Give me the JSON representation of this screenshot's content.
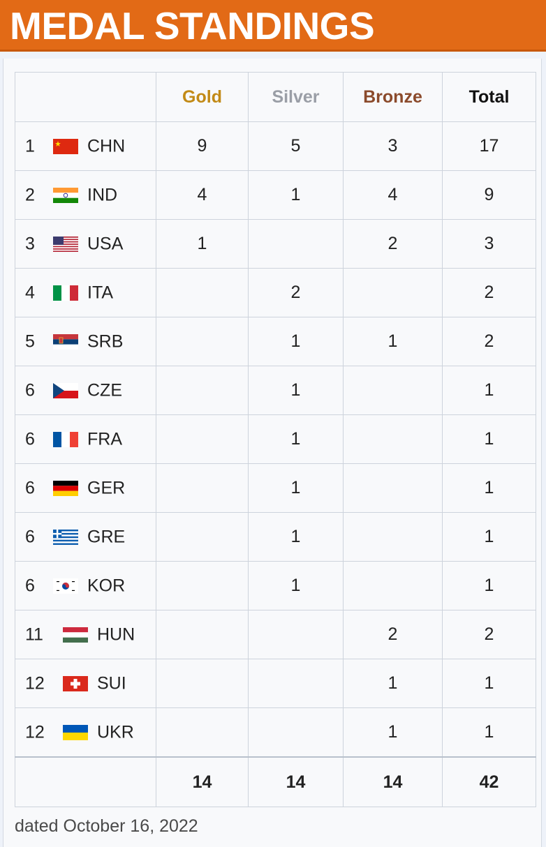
{
  "banner": {
    "title": "MEDAL STANDINGS",
    "background": "#e26a16"
  },
  "table": {
    "headers": {
      "gold": "Gold",
      "silver": "Silver",
      "bronze": "Bronze",
      "total": "Total"
    },
    "header_colors": {
      "gold": "#c28a16",
      "silver": "#9a9ea6",
      "bronze": "#8b4a2b",
      "total": "#111111"
    },
    "rows": [
      {
        "rank": "1",
        "code": "CHN",
        "flag": "china-flag-icon",
        "gold": "9",
        "silver": "5",
        "bronze": "3",
        "total": "17"
      },
      {
        "rank": "2",
        "code": "IND",
        "flag": "india-flag-icon",
        "gold": "4",
        "silver": "1",
        "bronze": "4",
        "total": "9"
      },
      {
        "rank": "3",
        "code": "USA",
        "flag": "usa-flag-icon",
        "gold": "1",
        "silver": "",
        "bronze": "2",
        "total": "3"
      },
      {
        "rank": "4",
        "code": "ITA",
        "flag": "italy-flag-icon",
        "gold": "",
        "silver": "2",
        "bronze": "",
        "total": "2"
      },
      {
        "rank": "5",
        "code": "SRB",
        "flag": "serbia-flag-icon",
        "gold": "",
        "silver": "1",
        "bronze": "1",
        "total": "2"
      },
      {
        "rank": "6",
        "code": "CZE",
        "flag": "czechia-flag-icon",
        "gold": "",
        "silver": "1",
        "bronze": "",
        "total": "1"
      },
      {
        "rank": "6",
        "code": "FRA",
        "flag": "france-flag-icon",
        "gold": "",
        "silver": "1",
        "bronze": "",
        "total": "1"
      },
      {
        "rank": "6",
        "code": "GER",
        "flag": "germany-flag-icon",
        "gold": "",
        "silver": "1",
        "bronze": "",
        "total": "1"
      },
      {
        "rank": "6",
        "code": "GRE",
        "flag": "greece-flag-icon",
        "gold": "",
        "silver": "1",
        "bronze": "",
        "total": "1"
      },
      {
        "rank": "6",
        "code": "KOR",
        "flag": "korea-flag-icon",
        "gold": "",
        "silver": "1",
        "bronze": "",
        "total": "1"
      },
      {
        "rank": "11",
        "code": "HUN",
        "flag": "hungary-flag-icon",
        "gold": "",
        "silver": "",
        "bronze": "2",
        "total": "2"
      },
      {
        "rank": "12",
        "code": "SUI",
        "flag": "switzerland-flag-icon",
        "gold": "",
        "silver": "",
        "bronze": "1",
        "total": "1"
      },
      {
        "rank": "12",
        "code": "UKR",
        "flag": "ukraine-flag-icon",
        "gold": "",
        "silver": "",
        "bronze": "1",
        "total": "1"
      }
    ],
    "totals": {
      "gold": "14",
      "silver": "14",
      "bronze": "14",
      "total": "42"
    }
  },
  "footer": {
    "note": "dated October 16, 2022"
  }
}
